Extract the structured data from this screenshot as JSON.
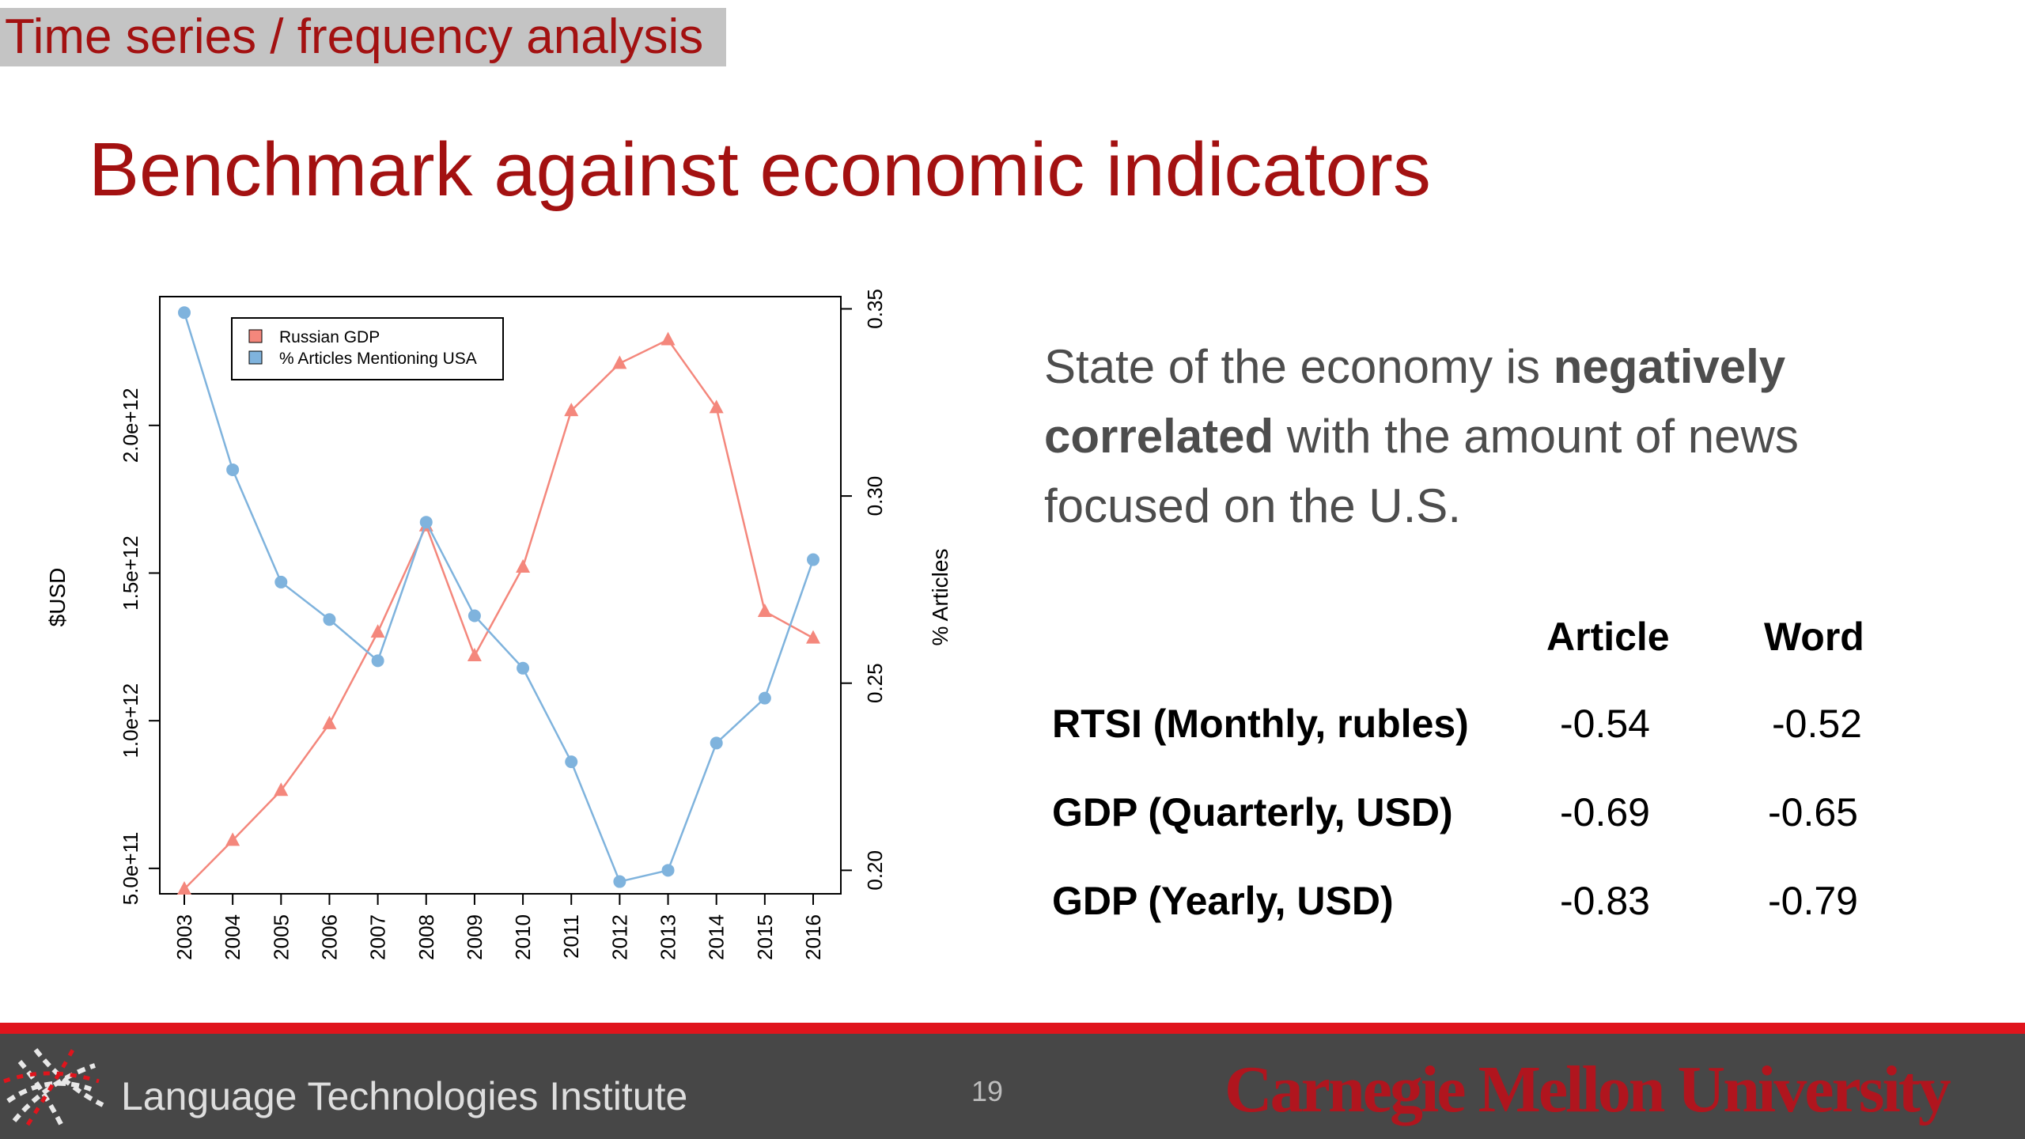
{
  "header": {
    "section": "Time series / frequency analysis",
    "title": "Benchmark against economic indicators"
  },
  "statement": {
    "part1": "State of the economy is ",
    "bold1": "negatively",
    "bold2": "correlated",
    "part2": " with the amount of news focused on the U.S."
  },
  "table": {
    "columns": [
      "Article",
      "Word"
    ],
    "rows": [
      {
        "label": "RTSI (Monthly, rubles)",
        "article": "-0.54",
        "word": "-0.52"
      },
      {
        "label": "GDP (Quarterly, USD)",
        "article": "-0.69",
        "word": "-0.65"
      },
      {
        "label": "GDP (Yearly, USD)",
        "article": "-0.83",
        "word": "-0.79"
      }
    ]
  },
  "chart_data": {
    "type": "line",
    "title": "",
    "x": [
      "2003",
      "2004",
      "2005",
      "2006",
      "2007",
      "2008",
      "2009",
      "2010",
      "2011",
      "2012",
      "2013",
      "2014",
      "2015",
      "2016"
    ],
    "ylabel": "$USD",
    "y2label": "% Articles",
    "ylim": [
      430000000000.0,
      2420000000000.0
    ],
    "y2lim": [
      0.195,
      0.352
    ],
    "yticks": [
      500000000000.0,
      1000000000000.0,
      1500000000000.0,
      2000000000000.0
    ],
    "ytick_labels": [
      "5.0e+11",
      "1.0e+12",
      "1.5e+12",
      "2.0e+12"
    ],
    "y2ticks": [
      0.2,
      0.25,
      0.3,
      0.35
    ],
    "y2tick_labels": [
      "0.20",
      "0.25",
      "0.30",
      "0.35"
    ],
    "legend_position": "top-left",
    "series": [
      {
        "name": "Russian GDP",
        "axis": "left",
        "marker": "triangle",
        "color": "#f4877c",
        "values": [
          430000000000.0,
          595000000000.0,
          764000000000.0,
          990000000000.0,
          1300000000000.0,
          1660000000000.0,
          1220000000000.0,
          1520000000000.0,
          2050000000000.0,
          2210000000000.0,
          2290000000000.0,
          2060000000000.0,
          1370000000000.0,
          1280000000000.0
        ]
      },
      {
        "name": "% Articles Mentioning USA",
        "axis": "right",
        "marker": "circle",
        "color": "#7fb3dd",
        "values": [
          0.349,
          0.307,
          0.277,
          0.267,
          0.256,
          0.293,
          0.268,
          0.254,
          0.229,
          0.197,
          0.2,
          0.234,
          0.246,
          0.283
        ]
      }
    ]
  },
  "footer": {
    "institute": "Language Technologies Institute",
    "page": "19",
    "university": "Carnegie Mellon University"
  },
  "colors": {
    "title": "#a31111",
    "footer_bg": "#474747",
    "footer_accent": "#e0141c"
  }
}
